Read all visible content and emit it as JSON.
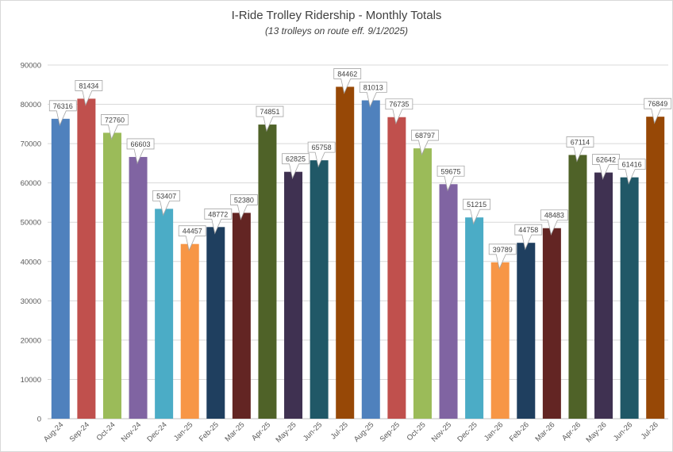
{
  "chart_data": {
    "type": "bar",
    "title": "I-Ride Trolley Ridership - Monthly Totals",
    "subtitle": "(13 trolleys on route eff. 9/1/2025)",
    "xlabel": "",
    "ylabel": "",
    "ylim": [
      0,
      90000
    ],
    "yticks": [
      0,
      10000,
      20000,
      30000,
      40000,
      50000,
      60000,
      70000,
      80000,
      90000
    ],
    "grid": true,
    "legend": "none",
    "categories": [
      "Aug-24",
      "Sep-24",
      "Oct-24",
      "Nov-24",
      "Dec-24",
      "Jan-25",
      "Feb-25",
      "Mar-25",
      "Apr-25",
      "May-25",
      "Jun-25",
      "Jul-25",
      "Aug-25",
      "Sep-25",
      "Oct-25",
      "Nov-25",
      "Dec-25",
      "Jan-26",
      "Feb-26",
      "Mar-26",
      "Apr-26",
      "May-26",
      "Jun-26",
      "Jul-26"
    ],
    "values": [
      76316,
      81434,
      72760,
      66603,
      53407,
      44457,
      48772,
      52380,
      74851,
      62825,
      65758,
      84462,
      81013,
      76735,
      68797,
      59675,
      51215,
      39789,
      44758,
      48483,
      67114,
      62642,
      61416,
      76849
    ],
    "colors": [
      "#4f81bd",
      "#c0504d",
      "#9bbb59",
      "#8064a2",
      "#4bacc6",
      "#f79646",
      "#1f3f5f",
      "#632523",
      "#4f6228",
      "#3f3151",
      "#205867",
      "#974806",
      "#4f81bd",
      "#c0504d",
      "#9bbb59",
      "#8064a2",
      "#4bacc6",
      "#f79646",
      "#1f3f5f",
      "#632523",
      "#4f6228",
      "#3f3151",
      "#205867",
      "#974806"
    ]
  }
}
